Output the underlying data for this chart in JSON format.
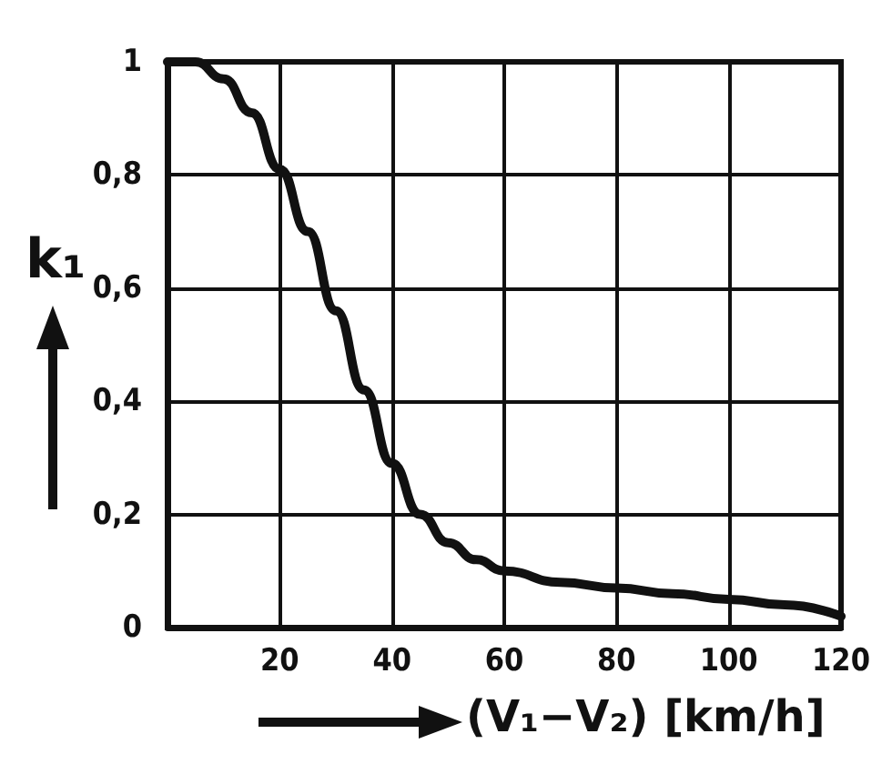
{
  "chart_data": {
    "type": "line",
    "xlabel": "(V₁−V₂) [km/h]",
    "ylabel": "k₁",
    "x": [
      0,
      5,
      10,
      15,
      20,
      25,
      30,
      35,
      40,
      45,
      50,
      55,
      60,
      70,
      80,
      90,
      100,
      110,
      120
    ],
    "series": [
      {
        "color": "#111111",
        "values": [
          1,
          1,
          0.97,
          0.91,
          0.81,
          0.7,
          0.56,
          0.42,
          0.29,
          0.2,
          0.15,
          0.12,
          0.1,
          0.08,
          0.07,
          0.06,
          0.05,
          0.04,
          0.02
        ]
      }
    ],
    "xlim": [
      0,
      120
    ],
    "xticks": [
      20,
      40,
      60,
      80,
      100,
      120
    ],
    "ylim": [
      0,
      1
    ],
    "yticks": [
      {
        "value": 0,
        "label": "0"
      },
      {
        "value": 0.2,
        "label": "0,2"
      },
      {
        "value": 0.4,
        "label": "0,4"
      },
      {
        "value": 0.6,
        "label": "0,6"
      },
      {
        "value": 0.8,
        "label": "0,8"
      },
      {
        "value": 1,
        "label": "1"
      }
    ],
    "grid": true,
    "marker": "none",
    "line_style": "solid"
  }
}
